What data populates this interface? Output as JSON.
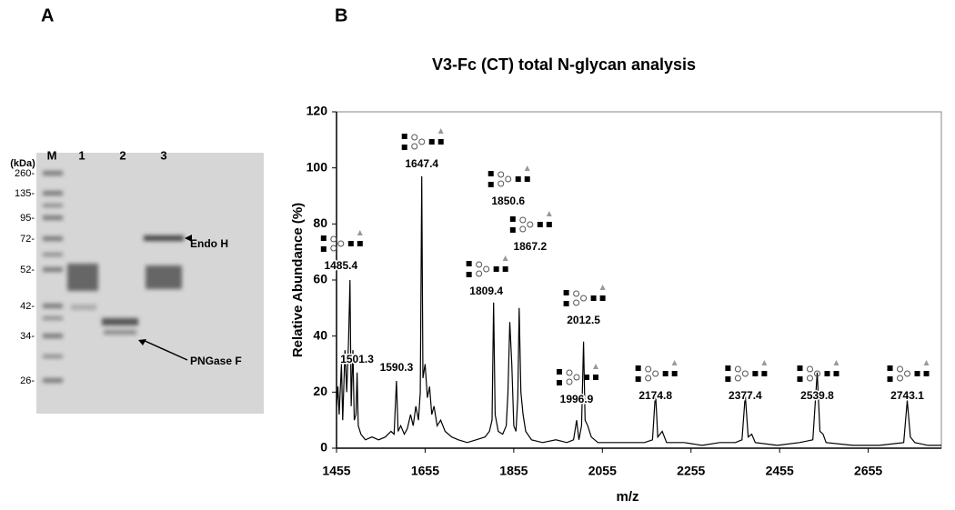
{
  "panel_a": {
    "letter": "A",
    "unit": "(kDa)",
    "lanes": [
      "M",
      "1",
      "2",
      "3"
    ],
    "markers": [
      "260-",
      "135-",
      "95-",
      "72-",
      "52-",
      "42-",
      "34-",
      "26-"
    ],
    "arrows": [
      "Endo H",
      "PNGase F"
    ]
  },
  "chart_data": {
    "type": "line",
    "panel": "B",
    "title": "V3-Fc (CT) total N-glycan analysis",
    "x_label": "m/z",
    "y_label": "Relative Abundance (%)",
    "color": "#000000",
    "xlim": [
      1455,
      2820
    ],
    "ylim": [
      0,
      120
    ],
    "xticks": [
      1455,
      1655,
      1855,
      2055,
      2255,
      2455,
      2655
    ],
    "yticks": [
      0,
      20,
      40,
      60,
      80,
      100,
      120
    ],
    "x": [
      1455,
      1458,
      1461,
      1466,
      1469,
      1474,
      1478,
      1482,
      1485.4,
      1488,
      1492,
      1495,
      1499,
      1501.3,
      1504,
      1510,
      1520,
      1535,
      1550,
      1565,
      1578,
      1585,
      1590.3,
      1594,
      1600,
      1608,
      1615,
      1622,
      1628,
      1634,
      1640,
      1644,
      1647.4,
      1650,
      1655,
      1660,
      1665,
      1670,
      1675,
      1682,
      1690,
      1700,
      1715,
      1730,
      1750,
      1770,
      1790,
      1800,
      1806,
      1809.4,
      1813,
      1820,
      1830,
      1838,
      1842,
      1846,
      1850.6,
      1855,
      1860,
      1864,
      1867.2,
      1871,
      1876,
      1882,
      1895,
      1920,
      1950,
      1975,
      1990,
      1996.9,
      2002,
      2008,
      2012.5,
      2016,
      2022,
      2030,
      2045,
      2080,
      2120,
      2150,
      2168,
      2174.8,
      2180,
      2190,
      2200,
      2240,
      2280,
      2320,
      2355,
      2370,
      2377.4,
      2384,
      2392,
      2400,
      2450,
      2500,
      2530,
      2539.8,
      2546,
      2553,
      2560,
      2620,
      2680,
      2735,
      2743.1,
      2750,
      2760,
      2790,
      2820
    ],
    "values": [
      15,
      22,
      12,
      30,
      10,
      35,
      20,
      38,
      60,
      15,
      35,
      10,
      12,
      27,
      8,
      5,
      3,
      4,
      3,
      4,
      6,
      5,
      24,
      6,
      8,
      5,
      7,
      12,
      8,
      15,
      10,
      20,
      97,
      25,
      30,
      18,
      22,
      12,
      15,
      8,
      10,
      6,
      4,
      3,
      2,
      3,
      4,
      6,
      10,
      52,
      12,
      6,
      5,
      8,
      20,
      45,
      30,
      8,
      6,
      18,
      50,
      20,
      12,
      6,
      3,
      2,
      3,
      2,
      3,
      10,
      3,
      8,
      38,
      10,
      8,
      4,
      2,
      2,
      2,
      2,
      3,
      20,
      4,
      6,
      2,
      2,
      1,
      2,
      2,
      3,
      19,
      4,
      5,
      2,
      1,
      2,
      3,
      27,
      6,
      5,
      2,
      1,
      1,
      2,
      17,
      4,
      2,
      1,
      1
    ],
    "peak_labels": [
      1485.4,
      1501.3,
      1590.3,
      1647.4,
      1809.4,
      1850.6,
      1867.2,
      1996.9,
      2012.5,
      2174.8,
      2377.4,
      2539.8,
      2743.1
    ]
  }
}
